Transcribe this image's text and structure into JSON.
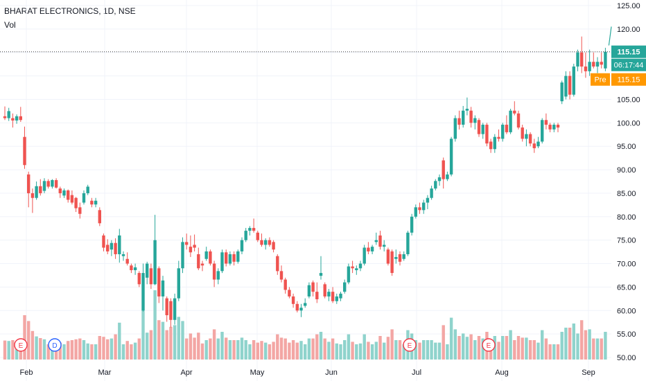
{
  "header": {
    "title": "BHARAT ELECTRONICS, 1D, NSE",
    "volume_label": "Vol"
  },
  "colors": {
    "up": "#26a69a",
    "down": "#ef5350",
    "vol_up": "#8fd3cc",
    "vol_down": "#f3a6a4",
    "grid": "#f0f3fa",
    "axis_text": "#131722",
    "pre_badge": "#ff9800",
    "trend_line": "#26a69a"
  },
  "price_badges": {
    "last": "115.15",
    "countdown": "06:17:44",
    "pre_label": "Pre",
    "pre_value": "115.15"
  },
  "events": [
    {
      "label": "E",
      "x": "Feb 01"
    },
    {
      "label": "D",
      "x": "Feb 14"
    },
    {
      "label": "E",
      "x": "Jul 01"
    },
    {
      "label": "E",
      "x": "Jul 31"
    }
  ],
  "chart_data": {
    "type": "candlestick",
    "title": "BHARAT ELECTRONICS, 1D, NSE",
    "y_ticks": [
      "125.00",
      "120.00",
      "115.00",
      "110.00",
      "105.00",
      "100.00",
      "95.00",
      "90.00",
      "85.00",
      "80.00",
      "75.00",
      "70.00",
      "65.00",
      "60.00",
      "55.00",
      "50.00"
    ],
    "x_ticks": [
      "Feb",
      "Mar",
      "Apr",
      "May",
      "Jun",
      "Jul",
      "Aug",
      "Sep"
    ],
    "ylim": [
      50,
      125
    ],
    "grid": true,
    "candles": [
      {
        "date": "Jan 24",
        "o": 101.4,
        "h": 103.5,
        "l": 100.6,
        "c": 101.0
      },
      {
        "date": "Jan 25",
        "o": 101.0,
        "h": 103.2,
        "l": 100.4,
        "c": 102.5
      },
      {
        "date": "Jan 27",
        "o": 101.0,
        "h": 102.0,
        "l": 99.0,
        "c": 100.5
      },
      {
        "date": "Jan 28",
        "o": 100.5,
        "h": 101.8,
        "l": 99.8,
        "c": 101.4
      },
      {
        "date": "Jan 31",
        "o": 101.4,
        "h": 103.4,
        "l": 100.2,
        "c": 100.6
      },
      {
        "date": "Feb 01",
        "o": 97.0,
        "h": 99.2,
        "l": 90.2,
        "c": 91.0
      },
      {
        "date": "Feb 02",
        "o": 89.0,
        "h": 89.6,
        "l": 82.0,
        "c": 85.0
      },
      {
        "date": "Feb 03",
        "o": 85.0,
        "h": 86.0,
        "l": 80.8,
        "c": 84.0
      },
      {
        "date": "Feb 04",
        "o": 84.0,
        "h": 87.5,
        "l": 83.6,
        "c": 86.5
      },
      {
        "date": "Feb 07",
        "o": 86.5,
        "h": 88.0,
        "l": 84.5,
        "c": 85.0
      },
      {
        "date": "Feb 08",
        "o": 85.5,
        "h": 88.2,
        "l": 85.0,
        "c": 87.6
      },
      {
        "date": "Feb 09",
        "o": 87.6,
        "h": 88.0,
        "l": 86.0,
        "c": 86.4
      },
      {
        "date": "Feb 10",
        "o": 86.4,
        "h": 88.0,
        "l": 86.0,
        "c": 87.8
      },
      {
        "date": "Feb 11",
        "o": 87.8,
        "h": 88.2,
        "l": 86.0,
        "c": 86.2
      },
      {
        "date": "Feb 14",
        "o": 86.0,
        "h": 86.4,
        "l": 84.0,
        "c": 85.0
      },
      {
        "date": "Feb 15",
        "o": 84.5,
        "h": 86.0,
        "l": 84.0,
        "c": 85.6
      },
      {
        "date": "Feb 16",
        "o": 85.6,
        "h": 85.8,
        "l": 83.0,
        "c": 83.6
      },
      {
        "date": "Feb 17",
        "o": 84.6,
        "h": 85.6,
        "l": 82.6,
        "c": 83.0
      },
      {
        "date": "Feb 18",
        "o": 84.0,
        "h": 84.2,
        "l": 81.0,
        "c": 81.8
      },
      {
        "date": "Feb 21",
        "o": 82.0,
        "h": 83.0,
        "l": 79.6,
        "c": 80.6
      },
      {
        "date": "Feb 22",
        "o": 83.0,
        "h": 85.6,
        "l": 82.6,
        "c": 85.0
      },
      {
        "date": "Feb 23",
        "o": 85.0,
        "h": 86.8,
        "l": 84.6,
        "c": 86.4
      },
      {
        "date": "Feb 24",
        "o": 83.4,
        "h": 84.0,
        "l": 82.0,
        "c": 82.6
      },
      {
        "date": "Feb 25",
        "o": 82.6,
        "h": 84.0,
        "l": 82.0,
        "c": 83.4
      },
      {
        "date": "Feb 28",
        "o": 81.4,
        "h": 82.0,
        "l": 78.0,
        "c": 78.6
      },
      {
        "date": "Mar 02",
        "o": 76.0,
        "h": 76.4,
        "l": 72.6,
        "c": 73.4
      },
      {
        "date": "Mar 03",
        "o": 74.0,
        "h": 75.2,
        "l": 72.0,
        "c": 72.6
      },
      {
        "date": "Mar 04",
        "o": 73.0,
        "h": 75.0,
        "l": 71.6,
        "c": 74.4
      },
      {
        "date": "Mar 07",
        "o": 74.4,
        "h": 75.4,
        "l": 71.0,
        "c": 72.0
      },
      {
        "date": "Mar 08",
        "o": 72.0,
        "h": 77.4,
        "l": 70.2,
        "c": 76.0
      },
      {
        "date": "Mar 09",
        "o": 71.6,
        "h": 72.6,
        "l": 70.6,
        "c": 72.0
      },
      {
        "date": "Mar 10",
        "o": 71.0,
        "h": 72.4,
        "l": 69.6,
        "c": 70.0
      },
      {
        "date": "Mar 11",
        "o": 69.6,
        "h": 70.0,
        "l": 68.0,
        "c": 68.6
      },
      {
        "date": "Mar 14",
        "o": 68.6,
        "h": 70.0,
        "l": 67.6,
        "c": 69.2
      },
      {
        "date": "Mar 15",
        "o": 68.0,
        "h": 68.4,
        "l": 65.0,
        "c": 65.6
      },
      {
        "date": "Mar 16",
        "o": 60.0,
        "h": 70.0,
        "l": 59.8,
        "c": 68.0
      },
      {
        "date": "Mar 17",
        "o": 67.0,
        "h": 70.4,
        "l": 65.6,
        "c": 70.0
      },
      {
        "date": "Mar 21",
        "o": 69.0,
        "h": 70.0,
        "l": 64.6,
        "c": 65.6
      },
      {
        "date": "Mar 22",
        "o": 65.6,
        "h": 80.4,
        "l": 65.4,
        "c": 75.0
      },
      {
        "date": "Mar 23",
        "o": 69.0,
        "h": 69.4,
        "l": 61.6,
        "c": 63.0
      },
      {
        "date": "Mar 24",
        "o": 63.0,
        "h": 67.4,
        "l": 60.0,
        "c": 66.4
      },
      {
        "date": "Mar 25",
        "o": 62.6,
        "h": 63.0,
        "l": 57.6,
        "c": 59.0
      },
      {
        "date": "Mar 28",
        "o": 62.0,
        "h": 62.6,
        "l": 56.4,
        "c": 58.0
      },
      {
        "date": "Mar 29",
        "o": 58.0,
        "h": 63.6,
        "l": 57.0,
        "c": 62.6
      },
      {
        "date": "Mar 30",
        "o": 62.6,
        "h": 70.6,
        "l": 62.0,
        "c": 69.0
      },
      {
        "date": "Mar 31",
        "o": 69.0,
        "h": 75.6,
        "l": 68.0,
        "c": 74.6
      },
      {
        "date": "Apr 01",
        "o": 74.6,
        "h": 76.4,
        "l": 73.0,
        "c": 74.0
      },
      {
        "date": "Apr 04",
        "o": 73.6,
        "h": 76.0,
        "l": 71.4,
        "c": 72.4
      },
      {
        "date": "Apr 05",
        "o": 74.0,
        "h": 76.2,
        "l": 72.6,
        "c": 73.4
      },
      {
        "date": "Apr 06",
        "o": 72.0,
        "h": 73.4,
        "l": 68.6,
        "c": 69.0
      },
      {
        "date": "Apr 07",
        "o": 70.0,
        "h": 70.6,
        "l": 68.4,
        "c": 69.6
      },
      {
        "date": "Apr 08",
        "o": 71.0,
        "h": 73.6,
        "l": 70.6,
        "c": 72.6
      },
      {
        "date": "Apr 11",
        "o": 72.6,
        "h": 73.0,
        "l": 69.6,
        "c": 70.0
      },
      {
        "date": "Apr 12",
        "o": 70.0,
        "h": 70.6,
        "l": 65.0,
        "c": 66.6
      },
      {
        "date": "Apr 13",
        "o": 66.6,
        "h": 69.0,
        "l": 65.6,
        "c": 68.4
      },
      {
        "date": "Apr 18",
        "o": 68.4,
        "h": 73.0,
        "l": 68.0,
        "c": 72.4
      },
      {
        "date": "Apr 19",
        "o": 72.4,
        "h": 73.0,
        "l": 69.4,
        "c": 70.0
      },
      {
        "date": "Apr 20",
        "o": 70.0,
        "h": 72.6,
        "l": 69.6,
        "c": 72.0
      },
      {
        "date": "Apr 21",
        "o": 72.0,
        "h": 72.6,
        "l": 69.6,
        "c": 70.4
      },
      {
        "date": "Apr 22",
        "o": 70.4,
        "h": 73.0,
        "l": 70.0,
        "c": 72.6
      },
      {
        "date": "Apr 25",
        "o": 72.6,
        "h": 75.6,
        "l": 72.0,
        "c": 75.0
      },
      {
        "date": "Apr 26",
        "o": 75.0,
        "h": 77.6,
        "l": 74.6,
        "c": 77.0
      },
      {
        "date": "Apr 27",
        "o": 77.0,
        "h": 78.0,
        "l": 76.0,
        "c": 77.6
      },
      {
        "date": "Apr 28",
        "o": 77.6,
        "h": 79.6,
        "l": 76.6,
        "c": 77.0
      },
      {
        "date": "Apr 29",
        "o": 76.6,
        "h": 77.0,
        "l": 74.6,
        "c": 75.0
      },
      {
        "date": "May 02",
        "o": 75.0,
        "h": 76.4,
        "l": 73.6,
        "c": 74.0
      },
      {
        "date": "May 04",
        "o": 74.0,
        "h": 75.4,
        "l": 73.0,
        "c": 75.0
      },
      {
        "date": "May 05",
        "o": 75.0,
        "h": 75.6,
        "l": 73.6,
        "c": 74.0
      },
      {
        "date": "May 06",
        "o": 74.6,
        "h": 75.0,
        "l": 72.4,
        "c": 73.0
      },
      {
        "date": "May 09",
        "o": 71.6,
        "h": 72.0,
        "l": 67.6,
        "c": 68.4
      },
      {
        "date": "May 10",
        "o": 68.4,
        "h": 69.6,
        "l": 66.0,
        "c": 66.6
      },
      {
        "date": "May 11",
        "o": 66.6,
        "h": 67.0,
        "l": 63.6,
        "c": 64.4
      },
      {
        "date": "May 12",
        "o": 64.4,
        "h": 65.0,
        "l": 62.6,
        "c": 63.0
      },
      {
        "date": "May 13",
        "o": 63.0,
        "h": 63.6,
        "l": 60.6,
        "c": 61.4
      },
      {
        "date": "May 16",
        "o": 61.4,
        "h": 62.0,
        "l": 59.6,
        "c": 60.0
      },
      {
        "date": "May 17",
        "o": 60.0,
        "h": 61.4,
        "l": 58.6,
        "c": 60.6
      },
      {
        "date": "May 18",
        "o": 61.0,
        "h": 62.6,
        "l": 60.6,
        "c": 61.6
      },
      {
        "date": "May 19",
        "o": 63.0,
        "h": 66.0,
        "l": 62.6,
        "c": 65.4
      },
      {
        "date": "May 20",
        "o": 66.0,
        "h": 66.4,
        "l": 63.0,
        "c": 64.0
      },
      {
        "date": "May 23",
        "o": 64.0,
        "h": 66.0,
        "l": 61.6,
        "c": 62.4
      },
      {
        "date": "May 24",
        "o": 67.4,
        "h": 71.6,
        "l": 66.6,
        "c": 68.0
      },
      {
        "date": "May 25",
        "o": 65.6,
        "h": 66.0,
        "l": 62.6,
        "c": 63.0
      },
      {
        "date": "May 26",
        "o": 63.0,
        "h": 64.6,
        "l": 62.0,
        "c": 64.0
      },
      {
        "date": "May 27",
        "o": 64.0,
        "h": 65.0,
        "l": 61.6,
        "c": 62.0
      },
      {
        "date": "May 30",
        "o": 62.0,
        "h": 63.6,
        "l": 61.4,
        "c": 63.0
      },
      {
        "date": "May 31",
        "o": 62.6,
        "h": 64.0,
        "l": 62.0,
        "c": 63.6
      },
      {
        "date": "Jun 01",
        "o": 64.0,
        "h": 66.6,
        "l": 63.6,
        "c": 66.0
      },
      {
        "date": "Jun 02",
        "o": 66.0,
        "h": 70.0,
        "l": 65.6,
        "c": 69.4
      },
      {
        "date": "Jun 03",
        "o": 69.4,
        "h": 70.6,
        "l": 68.0,
        "c": 69.0
      },
      {
        "date": "Jun 06",
        "o": 68.6,
        "h": 69.6,
        "l": 67.6,
        "c": 69.0
      },
      {
        "date": "Jun 07",
        "o": 69.0,
        "h": 70.6,
        "l": 68.4,
        "c": 70.0
      },
      {
        "date": "Jun 08",
        "o": 70.0,
        "h": 74.0,
        "l": 69.6,
        "c": 73.4
      },
      {
        "date": "Jun 09",
        "o": 73.4,
        "h": 74.6,
        "l": 72.0,
        "c": 72.6
      },
      {
        "date": "Jun 10",
        "o": 72.6,
        "h": 74.0,
        "l": 72.0,
        "c": 73.6
      },
      {
        "date": "Jun 13",
        "o": 74.6,
        "h": 76.6,
        "l": 74.0,
        "c": 75.0
      },
      {
        "date": "Jun 14",
        "o": 76.0,
        "h": 77.0,
        "l": 73.0,
        "c": 73.6
      },
      {
        "date": "Jun 15",
        "o": 73.6,
        "h": 75.0,
        "l": 72.6,
        "c": 74.0
      },
      {
        "date": "Jun 16",
        "o": 73.0,
        "h": 73.4,
        "l": 69.6,
        "c": 70.0
      },
      {
        "date": "Jun 17",
        "o": 72.6,
        "h": 73.0,
        "l": 67.4,
        "c": 68.0
      },
      {
        "date": "Jun 20",
        "o": 71.0,
        "h": 73.0,
        "l": 70.0,
        "c": 71.4
      },
      {
        "date": "Jun 21",
        "o": 72.0,
        "h": 72.6,
        "l": 69.6,
        "c": 70.4
      },
      {
        "date": "Jun 22",
        "o": 71.0,
        "h": 72.6,
        "l": 70.6,
        "c": 72.0
      },
      {
        "date": "Jun 23",
        "o": 72.0,
        "h": 77.0,
        "l": 71.6,
        "c": 76.6
      },
      {
        "date": "Jun 24",
        "o": 76.6,
        "h": 80.6,
        "l": 76.0,
        "c": 80.0
      },
      {
        "date": "Jun 27",
        "o": 80.0,
        "h": 82.6,
        "l": 79.6,
        "c": 82.0
      },
      {
        "date": "Jun 28",
        "o": 82.0,
        "h": 83.0,
        "l": 80.6,
        "c": 81.4
      },
      {
        "date": "Jun 29",
        "o": 81.4,
        "h": 83.6,
        "l": 80.6,
        "c": 83.0
      },
      {
        "date": "Jun 30",
        "o": 83.0,
        "h": 84.6,
        "l": 81.6,
        "c": 84.0
      },
      {
        "date": "Jul 01",
        "o": 84.0,
        "h": 86.6,
        "l": 83.6,
        "c": 86.0
      },
      {
        "date": "Jul 04",
        "o": 86.0,
        "h": 88.0,
        "l": 85.6,
        "c": 87.6
      },
      {
        "date": "Jul 05",
        "o": 87.6,
        "h": 89.0,
        "l": 86.6,
        "c": 88.4
      },
      {
        "date": "Jul 06",
        "o": 92.0,
        "h": 92.6,
        "l": 86.0,
        "c": 88.0
      },
      {
        "date": "Jul 07",
        "o": 88.0,
        "h": 89.6,
        "l": 87.6,
        "c": 89.0
      },
      {
        "date": "Jul 08",
        "o": 89.0,
        "h": 97.0,
        "l": 88.6,
        "c": 96.6
      },
      {
        "date": "Jul 11",
        "o": 96.6,
        "h": 101.6,
        "l": 96.0,
        "c": 101.0
      },
      {
        "date": "Jul 12",
        "o": 101.0,
        "h": 102.6,
        "l": 98.6,
        "c": 99.6
      },
      {
        "date": "Jul 13",
        "o": 99.6,
        "h": 103.6,
        "l": 99.0,
        "c": 102.6
      },
      {
        "date": "Jul 14",
        "o": 102.6,
        "h": 105.4,
        "l": 101.6,
        "c": 103.0
      },
      {
        "date": "Jul 15",
        "o": 102.6,
        "h": 103.4,
        "l": 99.0,
        "c": 100.0
      },
      {
        "date": "Jul 18",
        "o": 100.0,
        "h": 101.6,
        "l": 98.6,
        "c": 101.0
      },
      {
        "date": "Jul 19",
        "o": 100.6,
        "h": 101.0,
        "l": 97.0,
        "c": 97.6
      },
      {
        "date": "Jul 20",
        "o": 97.6,
        "h": 100.0,
        "l": 96.6,
        "c": 99.6
      },
      {
        "date": "Jul 21",
        "o": 99.6,
        "h": 100.0,
        "l": 95.0,
        "c": 95.6
      },
      {
        "date": "Jul 22",
        "o": 96.0,
        "h": 96.6,
        "l": 93.6,
        "c": 94.4
      },
      {
        "date": "Jul 25",
        "o": 94.4,
        "h": 97.6,
        "l": 93.6,
        "c": 97.0
      },
      {
        "date": "Jul 26",
        "o": 97.0,
        "h": 98.6,
        "l": 96.0,
        "c": 96.6
      },
      {
        "date": "Jul 27",
        "o": 96.6,
        "h": 100.0,
        "l": 96.0,
        "c": 99.6
      },
      {
        "date": "Jul 28",
        "o": 99.6,
        "h": 101.6,
        "l": 97.6,
        "c": 98.0
      },
      {
        "date": "Jul 29",
        "o": 98.0,
        "h": 103.0,
        "l": 97.6,
        "c": 102.6
      },
      {
        "date": "Aug 01",
        "o": 102.6,
        "h": 104.6,
        "l": 101.6,
        "c": 102.0
      },
      {
        "date": "Aug 02",
        "o": 102.0,
        "h": 102.6,
        "l": 98.6,
        "c": 99.0
      },
      {
        "date": "Aug 03",
        "o": 99.0,
        "h": 99.6,
        "l": 96.0,
        "c": 96.6
      },
      {
        "date": "Aug 04",
        "o": 96.6,
        "h": 98.6,
        "l": 95.0,
        "c": 97.6
      },
      {
        "date": "Aug 05",
        "o": 97.6,
        "h": 98.0,
        "l": 95.0,
        "c": 95.6
      },
      {
        "date": "Aug 08",
        "o": 95.6,
        "h": 96.6,
        "l": 93.6,
        "c": 94.6
      },
      {
        "date": "Aug 10",
        "o": 95.0,
        "h": 97.0,
        "l": 94.6,
        "c": 96.0
      },
      {
        "date": "Aug 11",
        "o": 96.0,
        "h": 101.0,
        "l": 95.6,
        "c": 100.6
      },
      {
        "date": "Aug 12",
        "o": 100.6,
        "h": 102.0,
        "l": 98.6,
        "c": 99.6
      },
      {
        "date": "Aug 16",
        "o": 99.6,
        "h": 100.0,
        "l": 98.0,
        "c": 98.6
      },
      {
        "date": "Aug 17",
        "o": 98.6,
        "h": 100.0,
        "l": 98.0,
        "c": 99.6
      },
      {
        "date": "Aug 18",
        "o": 99.6,
        "h": 100.0,
        "l": 98.0,
        "c": 99.0
      },
      {
        "date": "Aug 19",
        "o": 104.6,
        "h": 109.0,
        "l": 104.0,
        "c": 108.6
      },
      {
        "date": "Aug 22",
        "o": 105.6,
        "h": 111.0,
        "l": 105.0,
        "c": 110.0
      },
      {
        "date": "Aug 23",
        "o": 110.0,
        "h": 111.0,
        "l": 105.0,
        "c": 106.0
      },
      {
        "date": "Aug 24",
        "o": 106.0,
        "h": 112.6,
        "l": 105.6,
        "c": 112.0
      },
      {
        "date": "Aug 25",
        "o": 112.0,
        "h": 115.6,
        "l": 111.0,
        "c": 115.0
      },
      {
        "date": "Aug 26",
        "o": 115.0,
        "h": 118.4,
        "l": 110.6,
        "c": 112.0
      },
      {
        "date": "Aug 29",
        "o": 112.0,
        "h": 115.0,
        "l": 109.6,
        "c": 111.0
      },
      {
        "date": "Aug 30",
        "o": 111.0,
        "h": 115.6,
        "l": 110.0,
        "c": 113.0
      },
      {
        "date": "Aug 31",
        "o": 113.0,
        "h": 115.0,
        "l": 111.6,
        "c": 112.0
      },
      {
        "date": "Sep 01",
        "o": 112.0,
        "h": 114.0,
        "l": 110.6,
        "c": 113.0
      },
      {
        "date": "Sep 02",
        "o": 113.0,
        "h": 115.0,
        "l": 111.6,
        "c": 112.4
      },
      {
        "date": "Sep 05",
        "o": 111.6,
        "h": 116.0,
        "l": 111.0,
        "c": 115.15
      }
    ]
  }
}
